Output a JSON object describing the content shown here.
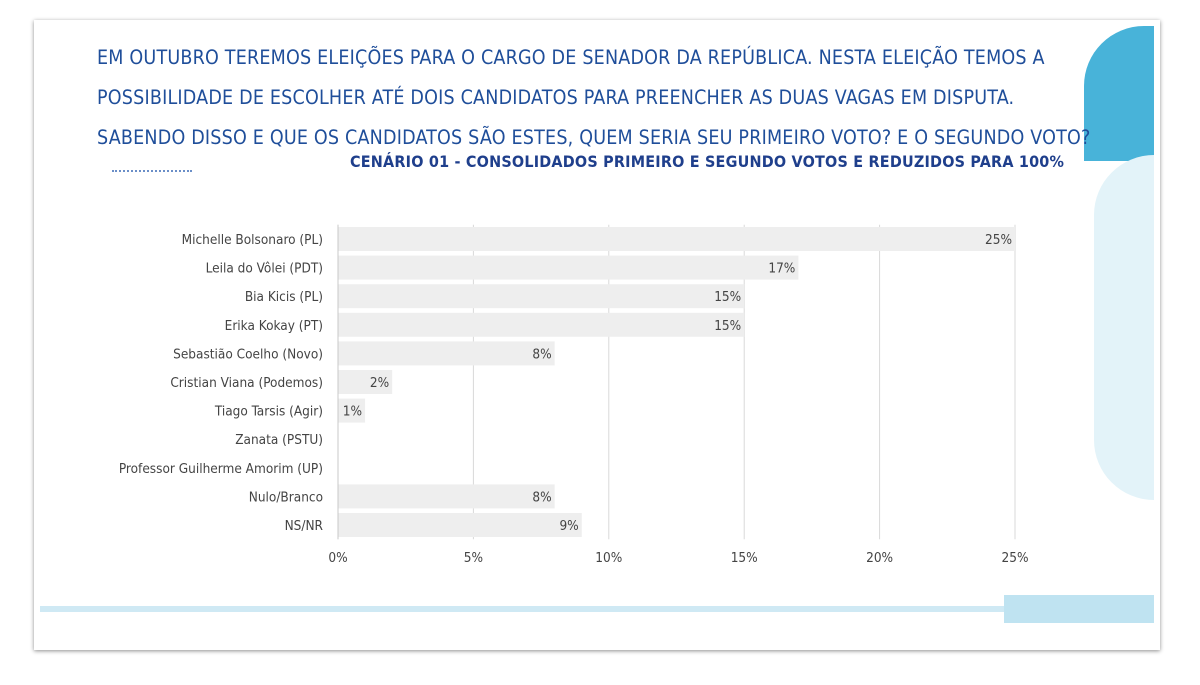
{
  "question": {
    "lines": [
      "EM OUTUBRO TEREMOS ELEIÇÕES PARA O CARGO DE SENADOR DA REPÚBLICA. NESTA ELEIÇÃO TEMOS A",
      "POSSIBILIDADE DE ESCOLHER ATÉ DOIS CANDIDATOS PARA PREENCHER AS DUAS VAGAS EM DISPUTA.",
      "SABENDO DISSO E QUE OS CANDIDATOS SÃO ESTES, QUEM SERIA SEU PRIMEIRO VOTO? E O SEGUNDO VOTO?"
    ]
  },
  "colors": {
    "bar": "#eeeeee",
    "grid": "#d9d9d9",
    "title": "#1f3f8c",
    "question": "#1f4e9a",
    "accent": "#48b3d9"
  },
  "chart_data": {
    "type": "bar",
    "orientation": "horizontal",
    "title": "CENÁRIO 01 - CONSOLIDADOS PRIMEIRO E SEGUNDO VOTOS E REDUZIDOS PARA 100%",
    "categories": [
      "Michelle Bolsonaro (PL)",
      "Leila do Vôlei (PDT)",
      "Bia Kicis (PL)",
      "Erika Kokay (PT)",
      "Sebastião Coelho (Novo)",
      "Cristian Viana (Podemos)",
      "Tiago Tarsis (Agir)",
      "Zanata (PSTU)",
      "Professor Guilherme Amorim (UP)",
      "Nulo/Branco",
      "NS/NR"
    ],
    "values": [
      25,
      17,
      15,
      15,
      8,
      2,
      1,
      0,
      0,
      8,
      9
    ],
    "value_labels": [
      "25%",
      "17%",
      "15%",
      "15%",
      "8%",
      "2%",
      "1%",
      "",
      "",
      "8%",
      "9%"
    ],
    "xlim": [
      0,
      25
    ],
    "x_ticks": [
      0,
      5,
      10,
      15,
      20,
      25
    ],
    "x_tick_labels": [
      "0%",
      "5%",
      "10%",
      "15%",
      "20%",
      "25%"
    ],
    "grid": true
  }
}
